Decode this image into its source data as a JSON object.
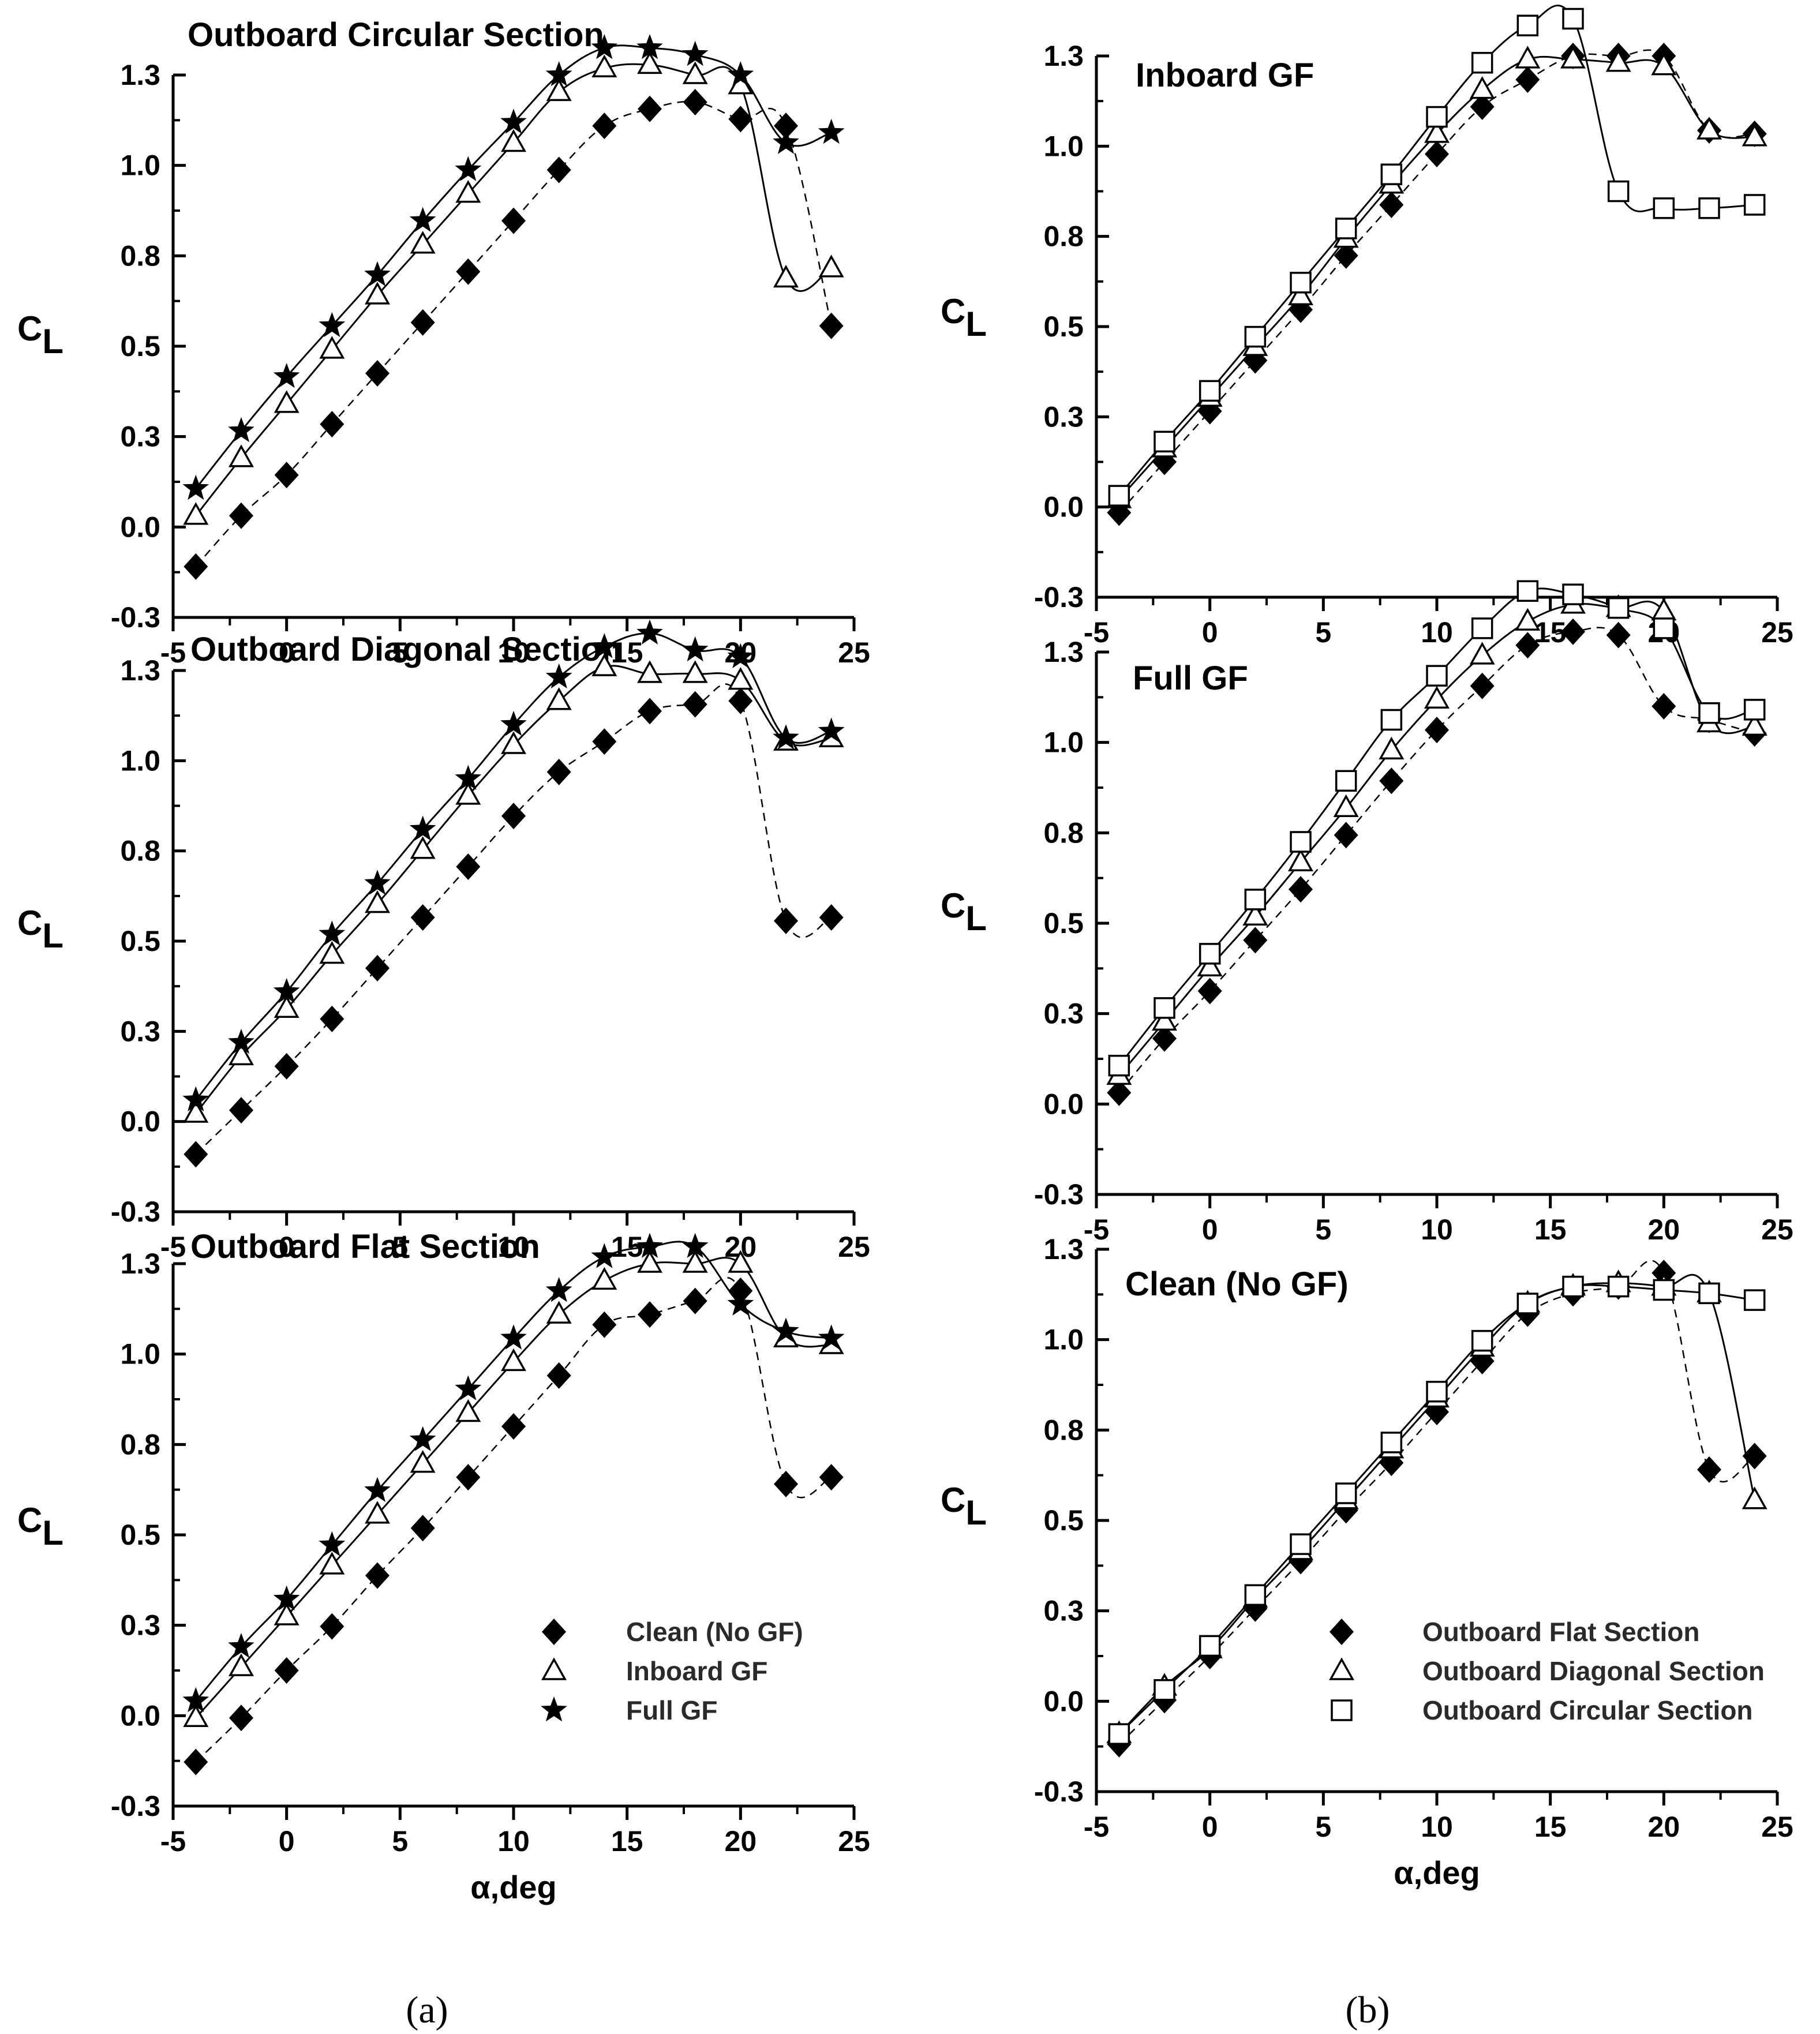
{
  "figure": {
    "sublabel_a": "(a)",
    "sublabel_b": "(b)"
  },
  "colors": {
    "axis": "#000000",
    "marker": "#000000",
    "line": "#000000",
    "background": "#ffffff"
  },
  "chart_data": [
    {
      "id": "a1",
      "type": "line",
      "title": "Outboard Circular Section",
      "xlabel": "",
      "ylabel": "C_L",
      "xlim": [
        -5,
        25
      ],
      "ylim": [
        -0.3,
        1.3
      ],
      "xticks": [
        "-5",
        "0",
        "5",
        "10",
        "15",
        "20",
        "25"
      ],
      "yticks": [
        "-0.3",
        "0.0",
        "0.3",
        "0.5",
        "0.8",
        "1.0",
        "1.3"
      ],
      "series": [
        {
          "name": "Clean (No GF)",
          "marker": "diamond-filled",
          "line": "dashed",
          "x": [
            -4,
            -2,
            0,
            2,
            4,
            6,
            8,
            10,
            12,
            14,
            16,
            18,
            20,
            22,
            24
          ],
          "y": [
            -0.15,
            0.0,
            0.12,
            0.27,
            0.42,
            0.57,
            0.72,
            0.87,
            1.02,
            1.15,
            1.2,
            1.22,
            1.17,
            1.15,
            0.56
          ]
        },
        {
          "name": "Inboard GF",
          "marker": "triangle-open",
          "line": "solid",
          "x": [
            -4,
            -2,
            0,
            2,
            4,
            6,
            8,
            10,
            12,
            14,
            16,
            18,
            20,
            22,
            24
          ],
          "y": [
            0.0,
            0.17,
            0.33,
            0.49,
            0.65,
            0.8,
            0.95,
            1.1,
            1.25,
            1.32,
            1.33,
            1.3,
            1.27,
            0.7,
            0.73
          ]
        },
        {
          "name": "Full GF",
          "marker": "star-filled",
          "line": "solid",
          "x": [
            -4,
            -2,
            0,
            2,
            4,
            6,
            8,
            10,
            12,
            14,
            16,
            18,
            20,
            22,
            24
          ],
          "y": [
            0.08,
            0.25,
            0.41,
            0.56,
            0.71,
            0.87,
            1.02,
            1.16,
            1.3,
            1.38,
            1.38,
            1.36,
            1.3,
            1.1,
            1.13
          ]
        }
      ]
    },
    {
      "id": "a2",
      "type": "line",
      "title": "Outboard Diagonal Section",
      "xlabel": "",
      "ylabel": "C_L",
      "xlim": [
        -5,
        25
      ],
      "ylim": [
        -0.3,
        1.3
      ],
      "xticks": [
        "-5",
        "0",
        "5",
        "10",
        "15",
        "20",
        "25"
      ],
      "yticks": [
        "-0.3",
        "0.0",
        "0.3",
        "0.5",
        "0.8",
        "1.0",
        "1.3"
      ],
      "series": [
        {
          "name": "Clean (No GF)",
          "marker": "diamond-filled",
          "line": "dashed",
          "x": [
            -4,
            -2,
            0,
            2,
            4,
            6,
            8,
            10,
            12,
            14,
            16,
            18,
            20,
            22,
            24
          ],
          "y": [
            -0.13,
            0.0,
            0.13,
            0.27,
            0.42,
            0.57,
            0.72,
            0.87,
            1.0,
            1.09,
            1.18,
            1.2,
            1.21,
            0.56,
            0.57
          ]
        },
        {
          "name": "Inboard GF",
          "marker": "triangle-open",
          "line": "solid",
          "x": [
            -4,
            -2,
            0,
            2,
            4,
            6,
            8,
            10,
            12,
            14,
            16,
            18,
            20,
            22,
            24
          ],
          "y": [
            -0.01,
            0.16,
            0.3,
            0.46,
            0.61,
            0.77,
            0.93,
            1.08,
            1.21,
            1.31,
            1.29,
            1.29,
            1.27,
            1.09,
            1.1
          ]
        },
        {
          "name": "Full GF",
          "marker": "star-filled",
          "line": "solid",
          "x": [
            -4,
            -2,
            0,
            2,
            4,
            6,
            8,
            10,
            12,
            14,
            16,
            18,
            20,
            22,
            24
          ],
          "y": [
            0.03,
            0.2,
            0.35,
            0.52,
            0.67,
            0.83,
            0.98,
            1.14,
            1.28,
            1.37,
            1.41,
            1.36,
            1.34,
            1.1,
            1.12
          ]
        }
      ]
    },
    {
      "id": "a3",
      "type": "line",
      "title": "Outboard Flat Section",
      "xlabel": "α,deg",
      "ylabel": "C_L",
      "xlim": [
        -5,
        25
      ],
      "ylim": [
        -0.3,
        1.3
      ],
      "xticks": [
        "-5",
        "0",
        "5",
        "10",
        "15",
        "20",
        "25"
      ],
      "yticks": [
        "-0.3",
        "0.0",
        "0.3",
        "0.5",
        "0.8",
        "1.0",
        "1.3"
      ],
      "series": [
        {
          "name": "Clean (No GF)",
          "marker": "diamond-filled",
          "line": "dashed",
          "x": [
            -4,
            -2,
            0,
            2,
            4,
            6,
            8,
            10,
            12,
            14,
            16,
            18,
            20,
            22,
            24
          ],
          "y": [
            -0.17,
            -0.04,
            0.1,
            0.23,
            0.38,
            0.52,
            0.67,
            0.82,
            0.97,
            1.12,
            1.15,
            1.19,
            1.22,
            0.65,
            0.67
          ]
        },
        {
          "name": "Inboard GF",
          "marker": "triangle-open",
          "line": "solid",
          "x": [
            -4,
            -2,
            0,
            2,
            4,
            6,
            8,
            10,
            12,
            14,
            16,
            18,
            20,
            22,
            24
          ],
          "y": [
            -0.04,
            0.11,
            0.26,
            0.41,
            0.56,
            0.71,
            0.86,
            1.01,
            1.15,
            1.25,
            1.3,
            1.3,
            1.3,
            1.08,
            1.06
          ]
        },
        {
          "name": "Full GF",
          "marker": "star-filled",
          "line": "solid",
          "x": [
            -4,
            -2,
            0,
            2,
            4,
            6,
            8,
            10,
            12,
            14,
            16,
            18,
            20,
            22,
            24
          ],
          "y": [
            0.01,
            0.17,
            0.31,
            0.47,
            0.63,
            0.78,
            0.93,
            1.08,
            1.22,
            1.32,
            1.35,
            1.35,
            1.18,
            1.1,
            1.08
          ]
        }
      ]
    },
    {
      "id": "b1",
      "type": "line",
      "title": "Inboard GF",
      "xlabel": "",
      "ylabel": "C_L",
      "xlim": [
        -5,
        25
      ],
      "ylim": [
        -0.3,
        1.3
      ],
      "xticks": [
        "-5",
        "0",
        "5",
        "10",
        "15",
        "20",
        "25"
      ],
      "yticks": [
        "-0.3",
        "0.0",
        "0.3",
        "0.5",
        "0.8",
        "1.0",
        "1.3"
      ],
      "series": [
        {
          "name": "Outboard Flat Section",
          "marker": "diamond-filled",
          "line": "dashed",
          "x": [
            -4,
            -2,
            0,
            2,
            4,
            6,
            8,
            10,
            12,
            14,
            16,
            18,
            20,
            22,
            24
          ],
          "y": [
            -0.05,
            0.1,
            0.25,
            0.4,
            0.55,
            0.71,
            0.86,
            1.01,
            1.15,
            1.23,
            1.3,
            1.3,
            1.3,
            1.08,
            1.07
          ]
        },
        {
          "name": "Outboard Diagonal Section",
          "marker": "triangle-open",
          "line": "solid",
          "x": [
            -4,
            -2,
            0,
            2,
            4,
            6,
            8,
            10,
            12,
            14,
            16,
            18,
            20,
            22,
            24
          ],
          "y": [
            -0.01,
            0.14,
            0.29,
            0.44,
            0.59,
            0.76,
            0.92,
            1.07,
            1.2,
            1.29,
            1.29,
            1.28,
            1.27,
            1.08,
            1.06
          ]
        },
        {
          "name": "Outboard Circular Section",
          "marker": "square-open",
          "line": "solid",
          "x": [
            -4,
            -2,
            0,
            2,
            4,
            6,
            8,
            10,
            12,
            14,
            16,
            18,
            20,
            22,
            24
          ],
          "y": [
            0.0,
            0.16,
            0.31,
            0.47,
            0.63,
            0.79,
            0.95,
            1.12,
            1.28,
            1.39,
            1.41,
            0.9,
            0.85,
            0.85,
            0.86
          ]
        }
      ]
    },
    {
      "id": "b2",
      "type": "line",
      "title": "Full GF",
      "xlabel": "",
      "ylabel": "C_L",
      "xlim": [
        -5,
        25
      ],
      "ylim": [
        -0.3,
        1.3
      ],
      "xticks": [
        "-5",
        "0",
        "5",
        "10",
        "15",
        "20",
        "25"
      ],
      "yticks": [
        "-0.3",
        "0.0",
        "0.3",
        "0.5",
        "0.8",
        "1.0",
        "1.3"
      ],
      "series": [
        {
          "name": "Outboard Flat Section",
          "marker": "diamond-filled",
          "line": "dashed",
          "x": [
            -4,
            -2,
            0,
            2,
            4,
            6,
            8,
            10,
            12,
            14,
            16,
            18,
            20,
            22,
            24
          ],
          "y": [
            0.0,
            0.16,
            0.3,
            0.45,
            0.6,
            0.76,
            0.92,
            1.07,
            1.2,
            1.32,
            1.36,
            1.35,
            1.14,
            1.1,
            1.06
          ]
        },
        {
          "name": "Outboard Diagonal Section",
          "marker": "triangle-open",
          "line": "solid",
          "x": [
            -4,
            -2,
            0,
            2,
            4,
            6,
            8,
            10,
            12,
            14,
            16,
            18,
            20,
            22,
            24
          ],
          "y": [
            0.05,
            0.21,
            0.37,
            0.52,
            0.68,
            0.84,
            1.01,
            1.16,
            1.29,
            1.39,
            1.44,
            1.43,
            1.42,
            1.09,
            1.08
          ]
        },
        {
          "name": "Outboard Circular Section",
          "marker": "square-open",
          "line": "solid",
          "x": [
            -4,
            -2,
            0,
            2,
            4,
            6,
            8,
            10,
            12,
            14,
            16,
            18,
            20,
            22,
            24
          ],
          "y": [
            0.08,
            0.25,
            0.41,
            0.57,
            0.74,
            0.92,
            1.1,
            1.23,
            1.37,
            1.48,
            1.47,
            1.43,
            1.37,
            1.12,
            1.13
          ]
        }
      ]
    },
    {
      "id": "b3",
      "type": "line",
      "title": "Clean (No GF)",
      "xlabel": "α,deg",
      "ylabel": "C_L",
      "xlim": [
        -5,
        25
      ],
      "ylim": [
        -0.3,
        1.3
      ],
      "xticks": [
        "-5",
        "0",
        "5",
        "10",
        "15",
        "20",
        "25"
      ],
      "yticks": [
        "-0.3",
        "0.0",
        "0.3",
        "0.5",
        "0.8",
        "1.0",
        "1.3"
      ],
      "series": [
        {
          "name": "Outboard Flat Section",
          "marker": "diamond-filled",
          "line": "dashed",
          "x": [
            -4,
            -2,
            0,
            2,
            4,
            6,
            8,
            10,
            12,
            14,
            16,
            18,
            20,
            22,
            24
          ],
          "y": [
            -0.16,
            -0.03,
            0.1,
            0.24,
            0.38,
            0.53,
            0.67,
            0.82,
            0.97,
            1.11,
            1.17,
            1.19,
            1.23,
            0.65,
            0.69
          ]
        },
        {
          "name": "Outboard Diagonal Section",
          "marker": "triangle-open",
          "line": "solid",
          "x": [
            -4,
            -2,
            0,
            2,
            4,
            6,
            8,
            10,
            12,
            14,
            16,
            18,
            20,
            22,
            24
          ],
          "y": [
            -0.13,
            0.01,
            0.12,
            0.27,
            0.41,
            0.56,
            0.71,
            0.86,
            1.01,
            1.14,
            1.19,
            1.2,
            1.19,
            1.17,
            0.56
          ]
        },
        {
          "name": "Outboard Circular Section",
          "marker": "square-open",
          "line": "solid",
          "x": [
            -4,
            -2,
            0,
            2,
            4,
            6,
            8,
            10,
            12,
            14,
            16,
            18,
            20,
            22,
            24
          ],
          "y": [
            -0.13,
            -0.0,
            0.13,
            0.28,
            0.43,
            0.58,
            0.73,
            0.88,
            1.03,
            1.14,
            1.19,
            1.19,
            1.18,
            1.17,
            1.15
          ]
        }
      ]
    }
  ],
  "legends": {
    "a": [
      {
        "label": "Clean (No GF)",
        "marker": "diamond-filled"
      },
      {
        "label": "Inboard GF",
        "marker": "triangle-open"
      },
      {
        "label": "Full GF",
        "marker": "star-filled"
      }
    ],
    "b": [
      {
        "label": "Outboard Flat Section",
        "marker": "diamond-filled"
      },
      {
        "label": "Outboard Diagonal Section",
        "marker": "triangle-open"
      },
      {
        "label": "Outboard Circular Section",
        "marker": "square-open"
      }
    ]
  }
}
